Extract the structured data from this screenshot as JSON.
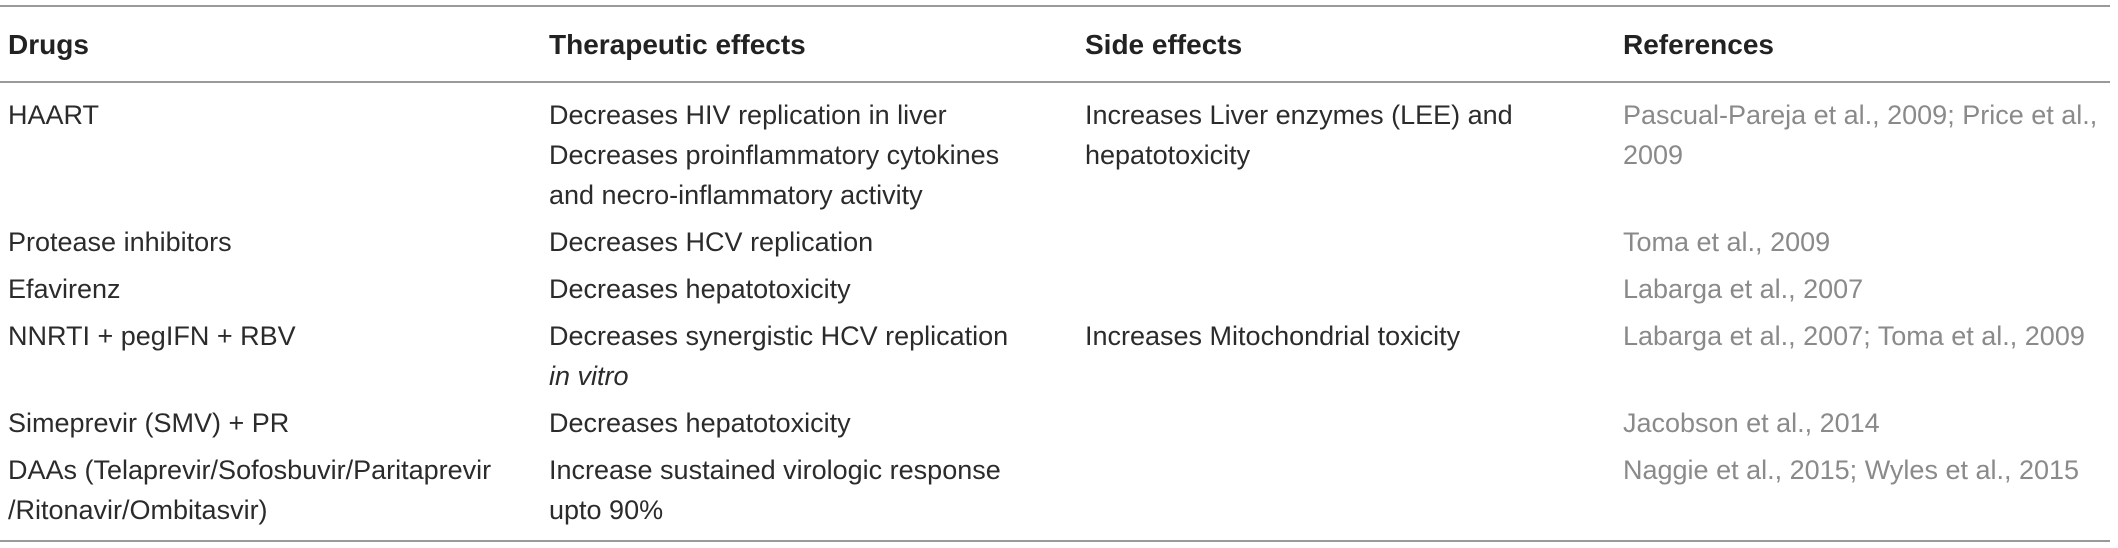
{
  "table": {
    "headers": [
      "Drugs",
      "Therapeutic effects",
      "Side effects",
      "References"
    ],
    "rows": [
      {
        "drug": "HAART",
        "therapeutic": {
          "l1": "Decreases HIV replication in liver",
          "l2": "Decreases proinflammatory cytokines",
          "l3": "and necro-inflammatory activity"
        },
        "side": {
          "l1": "Increases Liver enzymes (LEE) and",
          "l2": "hepatotoxicity"
        },
        "refs": {
          "r1": "Pascual-Pareja et al., 2009",
          "sep": "; ",
          "r2a": "Price et al.,",
          "r2b": "2009"
        }
      },
      {
        "drug": "Protease inhibitors",
        "therapeutic": "Decreases HCV replication",
        "side": "",
        "refs": "Toma et al., 2009"
      },
      {
        "drug": "Efavirenz",
        "therapeutic": "Decreases hepatotoxicity",
        "side": "",
        "refs": "Labarga et al., 2007"
      },
      {
        "drug": "NNRTI + pegIFN + RBV",
        "therapeutic": {
          "l1": "Decreases synergistic HCV replication",
          "l2": "in vitro"
        },
        "side": "Increases Mitochondrial toxicity",
        "refs": {
          "r1": "Labarga et al., 2007",
          "sep": "; ",
          "r2": "Toma et al., 2009"
        }
      },
      {
        "drug": "Simeprevir (SMV) + PR",
        "therapeutic": "Decreases hepatotoxicity",
        "side": "",
        "refs": "Jacobson et al., 2014"
      },
      {
        "drug": {
          "l1": "DAAs (Telaprevir/Sofosbuvir/Paritaprevir",
          "l2": "/Ritonavir/Ombitasvir)"
        },
        "therapeutic": {
          "l1": "Increase sustained virologic response",
          "l2": "upto 90%"
        },
        "side": "",
        "refs": {
          "r1": "Naggie et al., 2015",
          "sep": "; ",
          "r2": "Wyles et al., 2015"
        }
      }
    ]
  }
}
